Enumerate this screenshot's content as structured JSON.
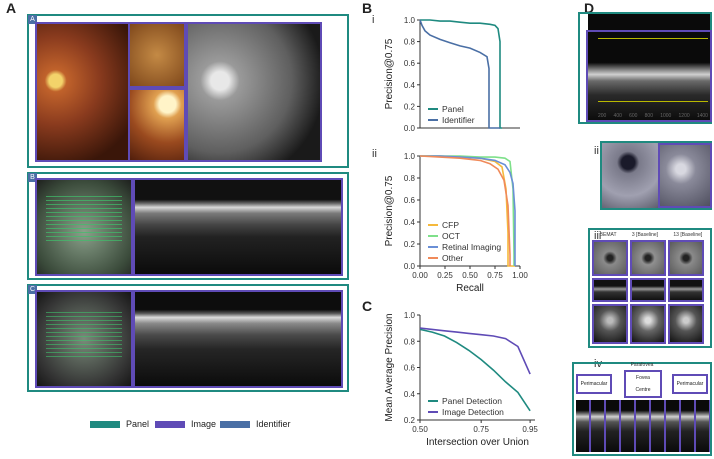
{
  "panel_letters": {
    "a": "A",
    "b": "B",
    "c": "C",
    "d": "D"
  },
  "sub_labels": {
    "i": "i",
    "ii": "ii",
    "iii": "iii",
    "iv": "iv"
  },
  "figure_a_badges": [
    "A",
    "B",
    "C"
  ],
  "legend": [
    {
      "label": "Panel",
      "color": "#1f8a80"
    },
    {
      "label": "Image",
      "color": "#5f4bb6"
    },
    {
      "label": "Identifier",
      "color": "#4a6fa5"
    }
  ],
  "colors": {
    "panel": "#1f8a80",
    "image": "#5f4bb6",
    "identifier": "#4a6fa5"
  },
  "d_labels": {
    "iii_titles": [
      "BEMAT",
      "3 [Baseline]",
      "13 [Baseline]"
    ],
    "iv_boxes": [
      "Perimacular",
      "Fovea",
      "Centre",
      "Perimacular"
    ],
    "iv_top": "Parafovea",
    "i_ticks": [
      "200",
      "400",
      "600",
      "800",
      "1000",
      "1200",
      "1400"
    ]
  },
  "chart_data": [
    {
      "type": "line",
      "id": "B-i",
      "ylabel": "Precision@0.75",
      "xlim": [
        0,
        1
      ],
      "ylim": [
        0,
        1
      ],
      "yticks": [
        "0.0",
        "0.2",
        "0.4",
        "0.6",
        "0.8",
        "1.0"
      ],
      "legend_position": "bottom-left",
      "series": [
        {
          "name": "Panel",
          "color": "#1f8a80",
          "x": [
            0,
            0.1,
            0.2,
            0.3,
            0.4,
            0.5,
            0.6,
            0.7,
            0.75,
            0.78,
            0.8,
            0.8,
            0.82
          ],
          "y": [
            1.0,
            1.0,
            0.99,
            0.99,
            0.98,
            0.97,
            0.97,
            0.96,
            0.95,
            0.92,
            0.8,
            0.0,
            0.0
          ]
        },
        {
          "name": "Identifier",
          "color": "#4a6fa5",
          "x": [
            0,
            0.02,
            0.05,
            0.1,
            0.2,
            0.3,
            0.4,
            0.5,
            0.6,
            0.67,
            0.69,
            0.69,
            0.8
          ],
          "y": [
            1.0,
            0.95,
            0.9,
            0.86,
            0.82,
            0.79,
            0.76,
            0.74,
            0.7,
            0.66,
            0.55,
            0.0,
            0.0
          ]
        }
      ]
    },
    {
      "type": "line",
      "id": "B-ii",
      "xlabel": "Recall",
      "ylabel": "Precision@0.75",
      "xlim": [
        0,
        1
      ],
      "ylim": [
        0,
        1
      ],
      "xticks": [
        "0.00",
        "0.25",
        "0.50",
        "0.75",
        "1.00"
      ],
      "yticks": [
        "0.0",
        "0.2",
        "0.4",
        "0.6",
        "0.8",
        "1.0"
      ],
      "legend_position": "bottom-left",
      "series": [
        {
          "name": "CFP",
          "color": "#f5b93c",
          "x": [
            0,
            0.2,
            0.4,
            0.6,
            0.75,
            0.82,
            0.86,
            0.88,
            0.88,
            0.95
          ],
          "y": [
            1.0,
            1.0,
            0.99,
            0.98,
            0.95,
            0.9,
            0.7,
            0.3,
            0.0,
            0.0
          ]
        },
        {
          "name": "OCT",
          "color": "#7ee08a",
          "x": [
            0,
            0.2,
            0.4,
            0.6,
            0.75,
            0.85,
            0.9,
            0.93,
            0.94,
            0.94
          ],
          "y": [
            1.0,
            1.0,
            1.0,
            0.99,
            0.99,
            0.98,
            0.95,
            0.7,
            0.1,
            0.0
          ]
        },
        {
          "name": "Retinal Imaging",
          "color": "#6a8fd6",
          "x": [
            0,
            0.2,
            0.4,
            0.6,
            0.75,
            0.85,
            0.9,
            0.93,
            0.95,
            0.95
          ],
          "y": [
            1.0,
            1.0,
            0.99,
            0.98,
            0.96,
            0.92,
            0.85,
            0.75,
            0.5,
            0.0
          ]
        },
        {
          "name": "Other",
          "color": "#f08a5a",
          "x": [
            0,
            0.2,
            0.4,
            0.6,
            0.7,
            0.78,
            0.84,
            0.88,
            0.9,
            0.9
          ],
          "y": [
            1.0,
            0.99,
            0.98,
            0.96,
            0.93,
            0.88,
            0.78,
            0.55,
            0.1,
            0.0
          ]
        }
      ]
    },
    {
      "type": "line",
      "id": "C",
      "xlabel": "Intersection over Union",
      "ylabel": "Mean Average Precision",
      "xlim": [
        0.5,
        0.97
      ],
      "ylim": [
        0.2,
        1.0
      ],
      "xticks": [
        "0.50",
        "0.75",
        "0.95"
      ],
      "yticks": [
        "0.2",
        "0.4",
        "0.6",
        "0.8",
        "1.0"
      ],
      "legend_position": "bottom-left",
      "series": [
        {
          "name": "Panel Detection",
          "color": "#1f8a80",
          "x": [
            0.5,
            0.55,
            0.6,
            0.65,
            0.7,
            0.75,
            0.8,
            0.85,
            0.9,
            0.95
          ],
          "y": [
            0.89,
            0.87,
            0.84,
            0.79,
            0.73,
            0.66,
            0.58,
            0.49,
            0.41,
            0.27
          ]
        },
        {
          "name": "Image Detection",
          "color": "#5f4bb6",
          "x": [
            0.5,
            0.55,
            0.6,
            0.65,
            0.7,
            0.75,
            0.8,
            0.85,
            0.9,
            0.95
          ],
          "y": [
            0.9,
            0.89,
            0.88,
            0.87,
            0.86,
            0.85,
            0.84,
            0.82,
            0.76,
            0.55
          ]
        }
      ]
    }
  ]
}
